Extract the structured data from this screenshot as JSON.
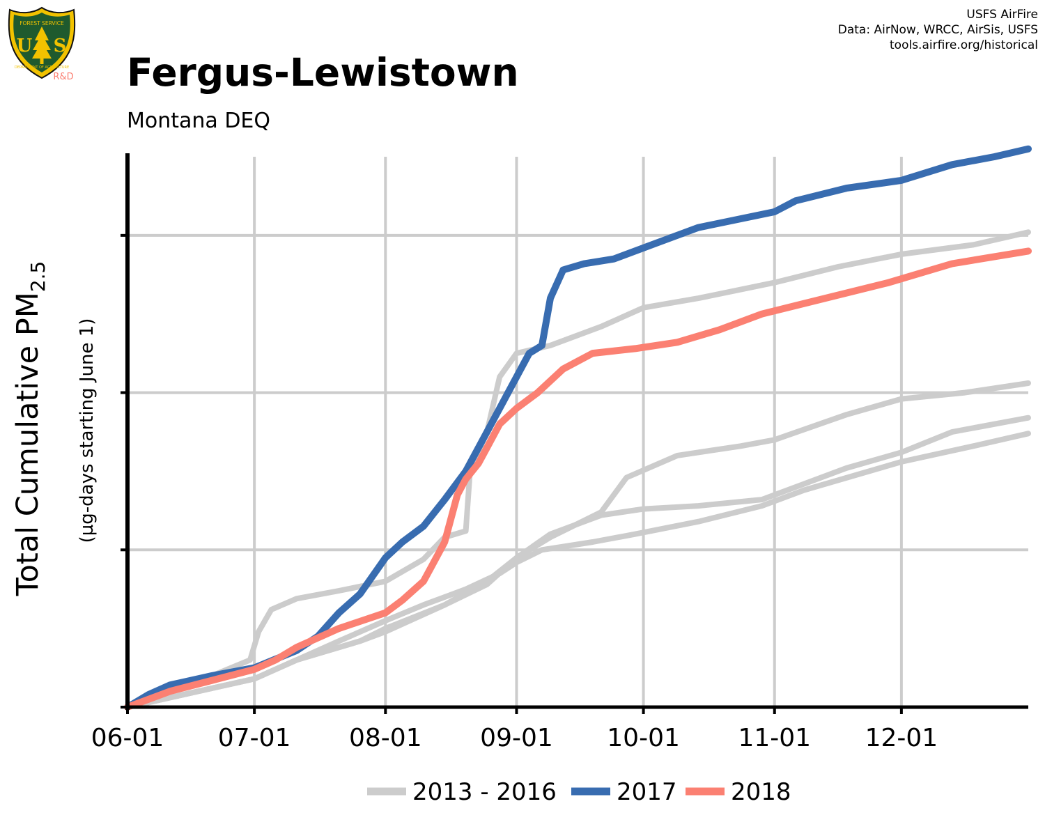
{
  "header": {
    "title": "Fergus-Lewistown",
    "subtitle": "Montana DEQ",
    "credits": [
      "USFS AirFire",
      "Data: AirNow, WRCC, AirSis, USFS",
      "tools.airfire.org/historical"
    ],
    "logo": {
      "icon": "usfs-shield-icon",
      "top_text": "FOREST SERVICE",
      "letters": [
        "U",
        "S"
      ],
      "bottom_text": "DEPARTMENT OF AGRICULTURE",
      "badge": "R&D"
    }
  },
  "colors": {
    "historic": "#cccccc",
    "y2017": "#386cb0",
    "y2018": "#fb8072",
    "badge": "#fb8072",
    "grid": "#cccccc",
    "shield_green": "#1f5a2e",
    "shield_gold": "#f2c200"
  },
  "chart_data": {
    "type": "line",
    "title": "Fergus-Lewistown",
    "subtitle": "Montana DEQ",
    "ylabel_main": "Total Cumulative PM",
    "ylabel_sub": "2.5",
    "ylabel2": "(µg-days starting June 1)",
    "xlabel": "",
    "x_unit": "days since June 1",
    "xlim": [
      0,
      213
    ],
    "ylim": [
      0,
      3.5
    ],
    "y_ticks": [
      0,
      1,
      2,
      3
    ],
    "y_tick_labels": [
      "",
      "",
      "",
      ""
    ],
    "x_ticks": [
      0,
      30,
      61,
      92,
      122,
      153,
      183
    ],
    "x_tick_labels": [
      "06-01",
      "07-01",
      "08-01",
      "09-01",
      "10-01",
      "11-01",
      "12-01"
    ],
    "grid": true,
    "legend_position": "bottom",
    "series": [
      {
        "name": "2013 - 2016",
        "values": [
          [
            0,
            0
          ],
          [
            10,
            0.12
          ],
          [
            20,
            0.2
          ],
          [
            29,
            0.3
          ],
          [
            31,
            0.48
          ],
          [
            34,
            0.62
          ],
          [
            40,
            0.69
          ],
          [
            50,
            0.74
          ],
          [
            61,
            0.8
          ],
          [
            70,
            0.94
          ],
          [
            75,
            1.08
          ],
          [
            80,
            1.12
          ],
          [
            81,
            1.5
          ],
          [
            85,
            1.75
          ],
          [
            88,
            2.1
          ],
          [
            92,
            2.25
          ],
          [
            100,
            2.3
          ],
          [
            112,
            2.42
          ],
          [
            122,
            2.54
          ],
          [
            135,
            2.6
          ],
          [
            153,
            2.7
          ],
          [
            168,
            2.8
          ],
          [
            183,
            2.88
          ],
          [
            200,
            2.94
          ],
          [
            213,
            3.02
          ]
        ]
      },
      {
        "name": "2013 - 2016",
        "values": [
          [
            0,
            0
          ],
          [
            20,
            0.12
          ],
          [
            30,
            0.18
          ],
          [
            40,
            0.3
          ],
          [
            50,
            0.42
          ],
          [
            61,
            0.55
          ],
          [
            70,
            0.65
          ],
          [
            80,
            0.75
          ],
          [
            88,
            0.85
          ],
          [
            92,
            0.92
          ],
          [
            98,
            1.0
          ],
          [
            110,
            1.05
          ],
          [
            120,
            1.1
          ],
          [
            135,
            1.18
          ],
          [
            150,
            1.28
          ],
          [
            160,
            1.38
          ],
          [
            183,
            1.56
          ],
          [
            200,
            1.66
          ],
          [
            213,
            1.74
          ]
        ]
      },
      {
        "name": "2013 - 2016",
        "values": [
          [
            0,
            0
          ],
          [
            20,
            0.12
          ],
          [
            30,
            0.18
          ],
          [
            40,
            0.3
          ],
          [
            55,
            0.42
          ],
          [
            61,
            0.48
          ],
          [
            75,
            0.65
          ],
          [
            85,
            0.8
          ],
          [
            92,
            0.95
          ],
          [
            100,
            1.1
          ],
          [
            112,
            1.22
          ],
          [
            122,
            1.26
          ],
          [
            135,
            1.28
          ],
          [
            150,
            1.32
          ],
          [
            170,
            1.52
          ],
          [
            183,
            1.62
          ],
          [
            195,
            1.75
          ],
          [
            213,
            1.84
          ]
        ]
      },
      {
        "name": "2013 - 2016",
        "values": [
          [
            0,
            0
          ],
          [
            20,
            0.12
          ],
          [
            30,
            0.18
          ],
          [
            40,
            0.3
          ],
          [
            55,
            0.42
          ],
          [
            61,
            0.5
          ],
          [
            75,
            0.65
          ],
          [
            85,
            0.78
          ],
          [
            92,
            0.95
          ],
          [
            100,
            1.08
          ],
          [
            112,
            1.24
          ],
          [
            118,
            1.46
          ],
          [
            130,
            1.6
          ],
          [
            145,
            1.66
          ],
          [
            153,
            1.7
          ],
          [
            170,
            1.86
          ],
          [
            183,
            1.96
          ],
          [
            198,
            2.0
          ],
          [
            213,
            2.06
          ]
        ]
      },
      {
        "name": "2017",
        "values": [
          [
            0,
            0
          ],
          [
            5,
            0.08
          ],
          [
            10,
            0.14
          ],
          [
            20,
            0.2
          ],
          [
            30,
            0.25
          ],
          [
            40,
            0.36
          ],
          [
            45,
            0.45
          ],
          [
            50,
            0.6
          ],
          [
            55,
            0.72
          ],
          [
            61,
            0.95
          ],
          [
            65,
            1.05
          ],
          [
            70,
            1.15
          ],
          [
            75,
            1.32
          ],
          [
            80,
            1.5
          ],
          [
            85,
            1.75
          ],
          [
            90,
            2.0
          ],
          [
            95,
            2.25
          ],
          [
            98,
            2.3
          ],
          [
            100,
            2.6
          ],
          [
            103,
            2.78
          ],
          [
            108,
            2.82
          ],
          [
            115,
            2.85
          ],
          [
            125,
            2.95
          ],
          [
            135,
            3.05
          ],
          [
            153,
            3.15
          ],
          [
            158,
            3.22
          ],
          [
            170,
            3.3
          ],
          [
            183,
            3.35
          ],
          [
            195,
            3.45
          ],
          [
            205,
            3.5
          ],
          [
            213,
            3.55
          ]
        ]
      },
      {
        "name": "2018",
        "values": [
          [
            0,
            0
          ],
          [
            10,
            0.1
          ],
          [
            20,
            0.17
          ],
          [
            30,
            0.24
          ],
          [
            35,
            0.3
          ],
          [
            40,
            0.38
          ],
          [
            50,
            0.5
          ],
          [
            61,
            0.6
          ],
          [
            65,
            0.68
          ],
          [
            70,
            0.8
          ],
          [
            72,
            0.9
          ],
          [
            75,
            1.05
          ],
          [
            78,
            1.35
          ],
          [
            80,
            1.45
          ],
          [
            83,
            1.55
          ],
          [
            85,
            1.65
          ],
          [
            88,
            1.8
          ],
          [
            92,
            1.9
          ],
          [
            97,
            2.0
          ],
          [
            103,
            2.15
          ],
          [
            110,
            2.25
          ],
          [
            120,
            2.28
          ],
          [
            130,
            2.32
          ],
          [
            140,
            2.4
          ],
          [
            150,
            2.5
          ],
          [
            165,
            2.6
          ],
          [
            180,
            2.7
          ],
          [
            195,
            2.82
          ],
          [
            213,
            2.9
          ]
        ]
      }
    ]
  }
}
